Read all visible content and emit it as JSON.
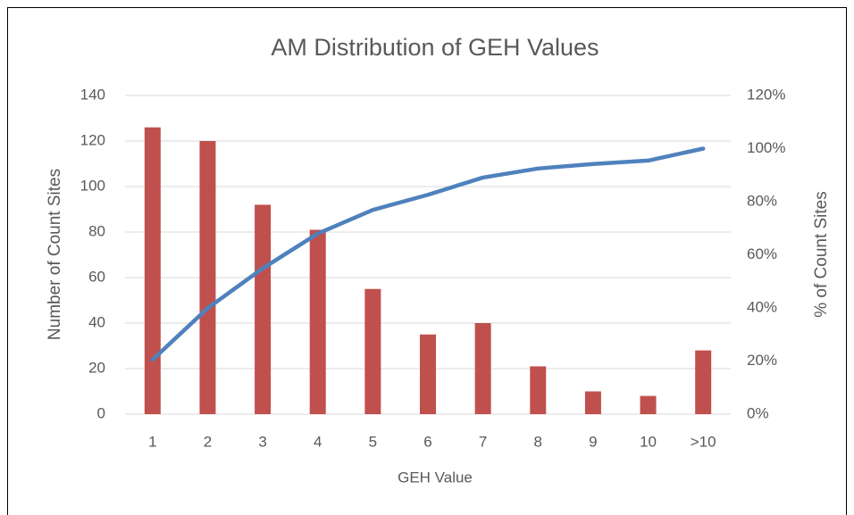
{
  "chart_data": {
    "type": "bar-line",
    "title": "AM Distribution of GEH Values",
    "x_label": "GEH Value",
    "y_label": "Number of Count Sites",
    "y2_label": "% of Count Sites",
    "categories": [
      "1",
      "2",
      "3",
      "4",
      "5",
      "6",
      "7",
      "8",
      "9",
      "10",
      ">10"
    ],
    "series": [
      {
        "name": "Number of Count Sites",
        "type": "bar",
        "color": "#c0504d",
        "values": [
          126,
          120,
          92,
          81,
          55,
          35,
          40,
          21,
          10,
          8,
          28
        ]
      },
      {
        "name": "% of Count Sites",
        "type": "line",
        "axis": "y2",
        "color": "#4f81bd",
        "values": [
          20.5,
          39.9,
          54.9,
          68.0,
          76.9,
          82.6,
          89.1,
          92.5,
          94.2,
          95.5,
          100
        ]
      }
    ],
    "ylim": [
      0,
      140
    ],
    "yticks": [
      0,
      20,
      40,
      60,
      80,
      100,
      120,
      140
    ],
    "y2lim": [
      0,
      120
    ],
    "y2ticks": [
      {
        "value": 0,
        "label": "0%"
      },
      {
        "value": 20,
        "label": "20%"
      },
      {
        "value": 40,
        "label": "40%"
      },
      {
        "value": 60,
        "label": "60%"
      },
      {
        "value": 80,
        "label": "80%"
      },
      {
        "value": 100,
        "label": "100%"
      },
      {
        "value": 120,
        "label": "120%"
      }
    ],
    "grid": true
  }
}
